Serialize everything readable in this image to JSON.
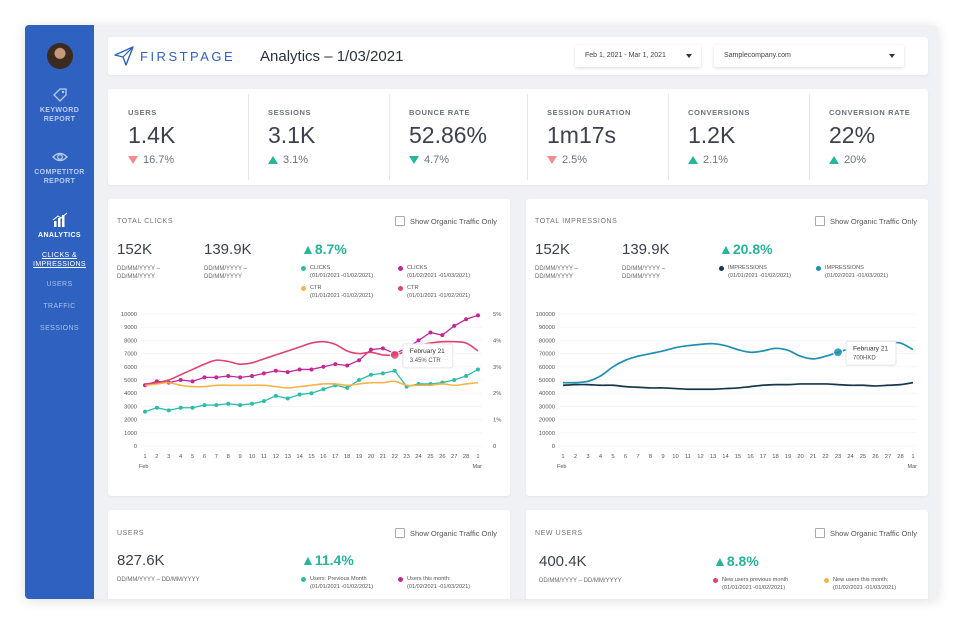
{
  "sidebar": {
    "items": [
      {
        "label_l1": "KEYWORD",
        "label_l2": "REPORT",
        "icon": "tag-icon"
      },
      {
        "label_l1": "COMPETITOR",
        "label_l2": "REPORT",
        "icon": "eye-icon"
      },
      {
        "label_l1": "ANALYTICS",
        "icon": "bar-chart-icon"
      }
    ],
    "sub_items": [
      {
        "label_l1": "CLICKS &",
        "label_l2": "IMPRESSIONS"
      },
      {
        "label": "USERS"
      },
      {
        "label": "TRAFFIC"
      },
      {
        "label": "SESSIONS"
      }
    ]
  },
  "header": {
    "logo_text": "FIRSTPAGE",
    "title": "Analytics – 1/03/2021",
    "date_range": "Feb 1, 2021 - Mar 1, 2021",
    "site": "Samplecompany.com"
  },
  "kpis": [
    {
      "label": "USERS",
      "value": "1.4K",
      "change": "16.7%",
      "direction": "down",
      "color": "#f28c8c"
    },
    {
      "label": "SESSIONS",
      "value": "3.1K",
      "change": "3.1%",
      "direction": "up",
      "color": "#26b49a"
    },
    {
      "label": "BOUNCE RATE",
      "value": "52.86%",
      "change": "4.7%",
      "direction": "down",
      "color": "#26b49a"
    },
    {
      "label": "SESSION DURATION",
      "value": "1m17s",
      "change": "2.5%",
      "direction": "down",
      "color": "#f28c8c"
    },
    {
      "label": "CONVERSIONS",
      "value": "1.2K",
      "change": "2.1%",
      "direction": "up",
      "color": "#26b49a"
    },
    {
      "label": "CONVERSION RATE",
      "value": "22%",
      "change": "20%",
      "direction": "up",
      "color": "#26b49a"
    }
  ],
  "clicks_panel": {
    "title": "TOTAL CLICKS",
    "checkbox_label": "Show Organic Traffic Only",
    "value_a": "152K",
    "value_b": "139.9K",
    "range_a": "DD/MM/YYYY –",
    "range_a2": "DD/MM/YYYY",
    "range_b": "DD/MM/YYYY –",
    "range_b2": "DD/MM/YYYY",
    "change": "▲8.7%",
    "legend": [
      {
        "name": "CLICKS",
        "period": "(01/01/2021 -01/02/2021)",
        "color": "#2bbdaa"
      },
      {
        "name": "CLICKS",
        "period": "(01/02/2021 -01/03/2021)",
        "color": "#c2279a"
      },
      {
        "name": "CTR",
        "period": "(01/01/2021 -01/02/2021)",
        "color": "#f5b449"
      },
      {
        "name": "CTR",
        "period": "(01/01/2021 -01/02/2021)",
        "color": "#e2436e"
      }
    ],
    "tooltip_title": "February 21",
    "tooltip_value": "3.45% CTR"
  },
  "impressions_panel": {
    "title": "TOTAL IMPRESSIONS",
    "checkbox_label": "Show Organic Traffic Only",
    "value_a": "152K",
    "value_b": "139.9K",
    "range_a": "DD/MM/YYYY –",
    "range_a2": "DD/MM/YYYY",
    "range_b": "DD/MM/YYYY –",
    "range_b2": "DD/MM/YYYY",
    "change": "▲20.8%",
    "legend": [
      {
        "name": "IMPRESSIONS",
        "period": "(01/01/2021 -01/02/2021)",
        "color": "#16374a"
      },
      {
        "name": "IMPRESSIONS",
        "period": "(01/02/2021 -01/03/2021)",
        "color": "#1d8fb0"
      }
    ],
    "tooltip_title": "February 21",
    "tooltip_value": "700HKD"
  },
  "users_panel": {
    "title": "USERS",
    "checkbox_label": "Show Organic Traffic Only",
    "value": "827.6K",
    "range": "DD/MM/YYYY – DD/MM/YYYY",
    "change": "▲11.4%",
    "legend": [
      {
        "name": "Users: Previous Month",
        "period": "(01/01/2021 -01/02/2021)",
        "color": "#2bbdaa"
      },
      {
        "name": "Users this month:",
        "period": "(01/02/2021 -01/03/2021)",
        "color": "#c2279a"
      }
    ]
  },
  "new_users_panel": {
    "title": "NEW USERS",
    "checkbox_label": "Show Organic Traffic Only",
    "value": "400.4K",
    "range": "DD/MM/YYYY – DD/MM/YYYY",
    "change": "▲8.8%",
    "legend": [
      {
        "name": "New users previous month",
        "period": "(01/01/2021 -01/02/2021)",
        "color": "#e2436e"
      },
      {
        "name": "New users this month:",
        "period": "(01/02/2021 -01/03/2021)",
        "color": "#f5b449"
      }
    ]
  },
  "chart_data": [
    {
      "type": "line",
      "name_hint": "clicks",
      "x": [
        "1",
        "2",
        "3",
        "4",
        "5",
        "6",
        "7",
        "8",
        "9",
        "10",
        "11",
        "12",
        "13",
        "14",
        "15",
        "16",
        "17",
        "18",
        "19",
        "20",
        "21",
        "22",
        "23",
        "24",
        "25",
        "26",
        "27",
        "28",
        "1"
      ],
      "x_month_start": "Feb",
      "x_month_end": "Mar",
      "ylim": [
        0,
        10000
      ],
      "y_ticks": [
        0,
        1000,
        2000,
        3000,
        4000,
        5000,
        6000,
        7000,
        8000,
        9000,
        10000
      ],
      "y2lim": [
        0,
        5
      ],
      "y2_ticks": [
        "0",
        "1%",
        "2%",
        "3%",
        "4%",
        "5%"
      ],
      "series": [
        {
          "name": "CLICKS (01/01/2021 -01/02/2021)",
          "color": "#2bbdaa",
          "axis": "left",
          "markers": true,
          "values": [
            2600,
            2900,
            2700,
            2900,
            2900,
            3100,
            3100,
            3200,
            3100,
            3200,
            3400,
            3800,
            3600,
            3900,
            4000,
            4300,
            4600,
            4400,
            5000,
            5400,
            5500,
            5700,
            4500,
            4700,
            4700,
            4800,
            5000,
            5300,
            5800
          ]
        },
        {
          "name": "CLICKS (01/02/2021 -01/03/2021)",
          "color": "#c2279a",
          "axis": "left",
          "markers": true,
          "values": [
            4600,
            4900,
            4800,
            5000,
            4900,
            5200,
            5200,
            5300,
            5200,
            5300,
            5500,
            5700,
            5600,
            5800,
            5800,
            6000,
            6200,
            6100,
            6500,
            7300,
            7400,
            7000,
            7400,
            8000,
            8600,
            8400,
            9100,
            9600,
            9900
          ]
        },
        {
          "name": "CTR (01/01/2021 -01/02/2021)",
          "color": "#f5b449",
          "axis": "right",
          "markers": false,
          "values": [
            2.3,
            2.35,
            2.4,
            2.3,
            2.25,
            2.25,
            2.3,
            2.3,
            2.3,
            2.3,
            2.3,
            2.25,
            2.2,
            2.25,
            2.3,
            2.35,
            2.35,
            2.3,
            2.35,
            2.4,
            2.4,
            2.45,
            2.3,
            2.3,
            2.3,
            2.35,
            2.3,
            2.35,
            2.4
          ]
        },
        {
          "name": "CTR (01/01/2021 -01/02/2021)",
          "color": "#e2436e",
          "axis": "right",
          "markers": false,
          "values": [
            2.35,
            2.4,
            2.5,
            2.7,
            2.9,
            3.1,
            3.25,
            3.2,
            3.1,
            3.15,
            3.3,
            3.45,
            3.6,
            3.75,
            3.9,
            3.95,
            3.85,
            3.6,
            3.5,
            3.55,
            3.45,
            3.45,
            3.6,
            3.8,
            3.9,
            3.95,
            3.95,
            3.9,
            3.6
          ]
        }
      ]
    },
    {
      "type": "line",
      "name_hint": "impressions",
      "x": [
        "1",
        "2",
        "3",
        "4",
        "5",
        "6",
        "7",
        "8",
        "9",
        "10",
        "11",
        "12",
        "13",
        "14",
        "15",
        "16",
        "17",
        "18",
        "19",
        "20",
        "21",
        "22",
        "23",
        "24",
        "25",
        "26",
        "27",
        "28",
        "1"
      ],
      "x_month_start": "Feb",
      "x_month_end": "Mar",
      "ylim": [
        0,
        100000
      ],
      "y_ticks": [
        0,
        10000,
        20000,
        30000,
        40000,
        50000,
        60000,
        70000,
        80000,
        90000,
        100000
      ],
      "series": [
        {
          "name": "IMPRESSIONS (01/01/2021 -01/02/2021)",
          "color": "#16374a",
          "values": [
            46000,
            46500,
            46500,
            46000,
            46000,
            45000,
            44500,
            44000,
            44000,
            43500,
            43000,
            43000,
            43000,
            43500,
            44000,
            45000,
            46000,
            46500,
            46500,
            47000,
            47000,
            47000,
            46500,
            46000,
            46000,
            45500,
            46000,
            46500,
            48000
          ]
        },
        {
          "name": "IMPRESSIONS (01/02/2021 -01/03/2021)",
          "color": "#1d8fb0",
          "values": [
            48000,
            48000,
            49000,
            53000,
            60000,
            65000,
            68000,
            70000,
            72000,
            74500,
            76000,
            77000,
            77500,
            76000,
            73000,
            71000,
            72000,
            74000,
            72500,
            68000,
            66000,
            68000,
            71000,
            74000,
            76000,
            77000,
            78000,
            78000,
            73000
          ]
        }
      ]
    }
  ]
}
